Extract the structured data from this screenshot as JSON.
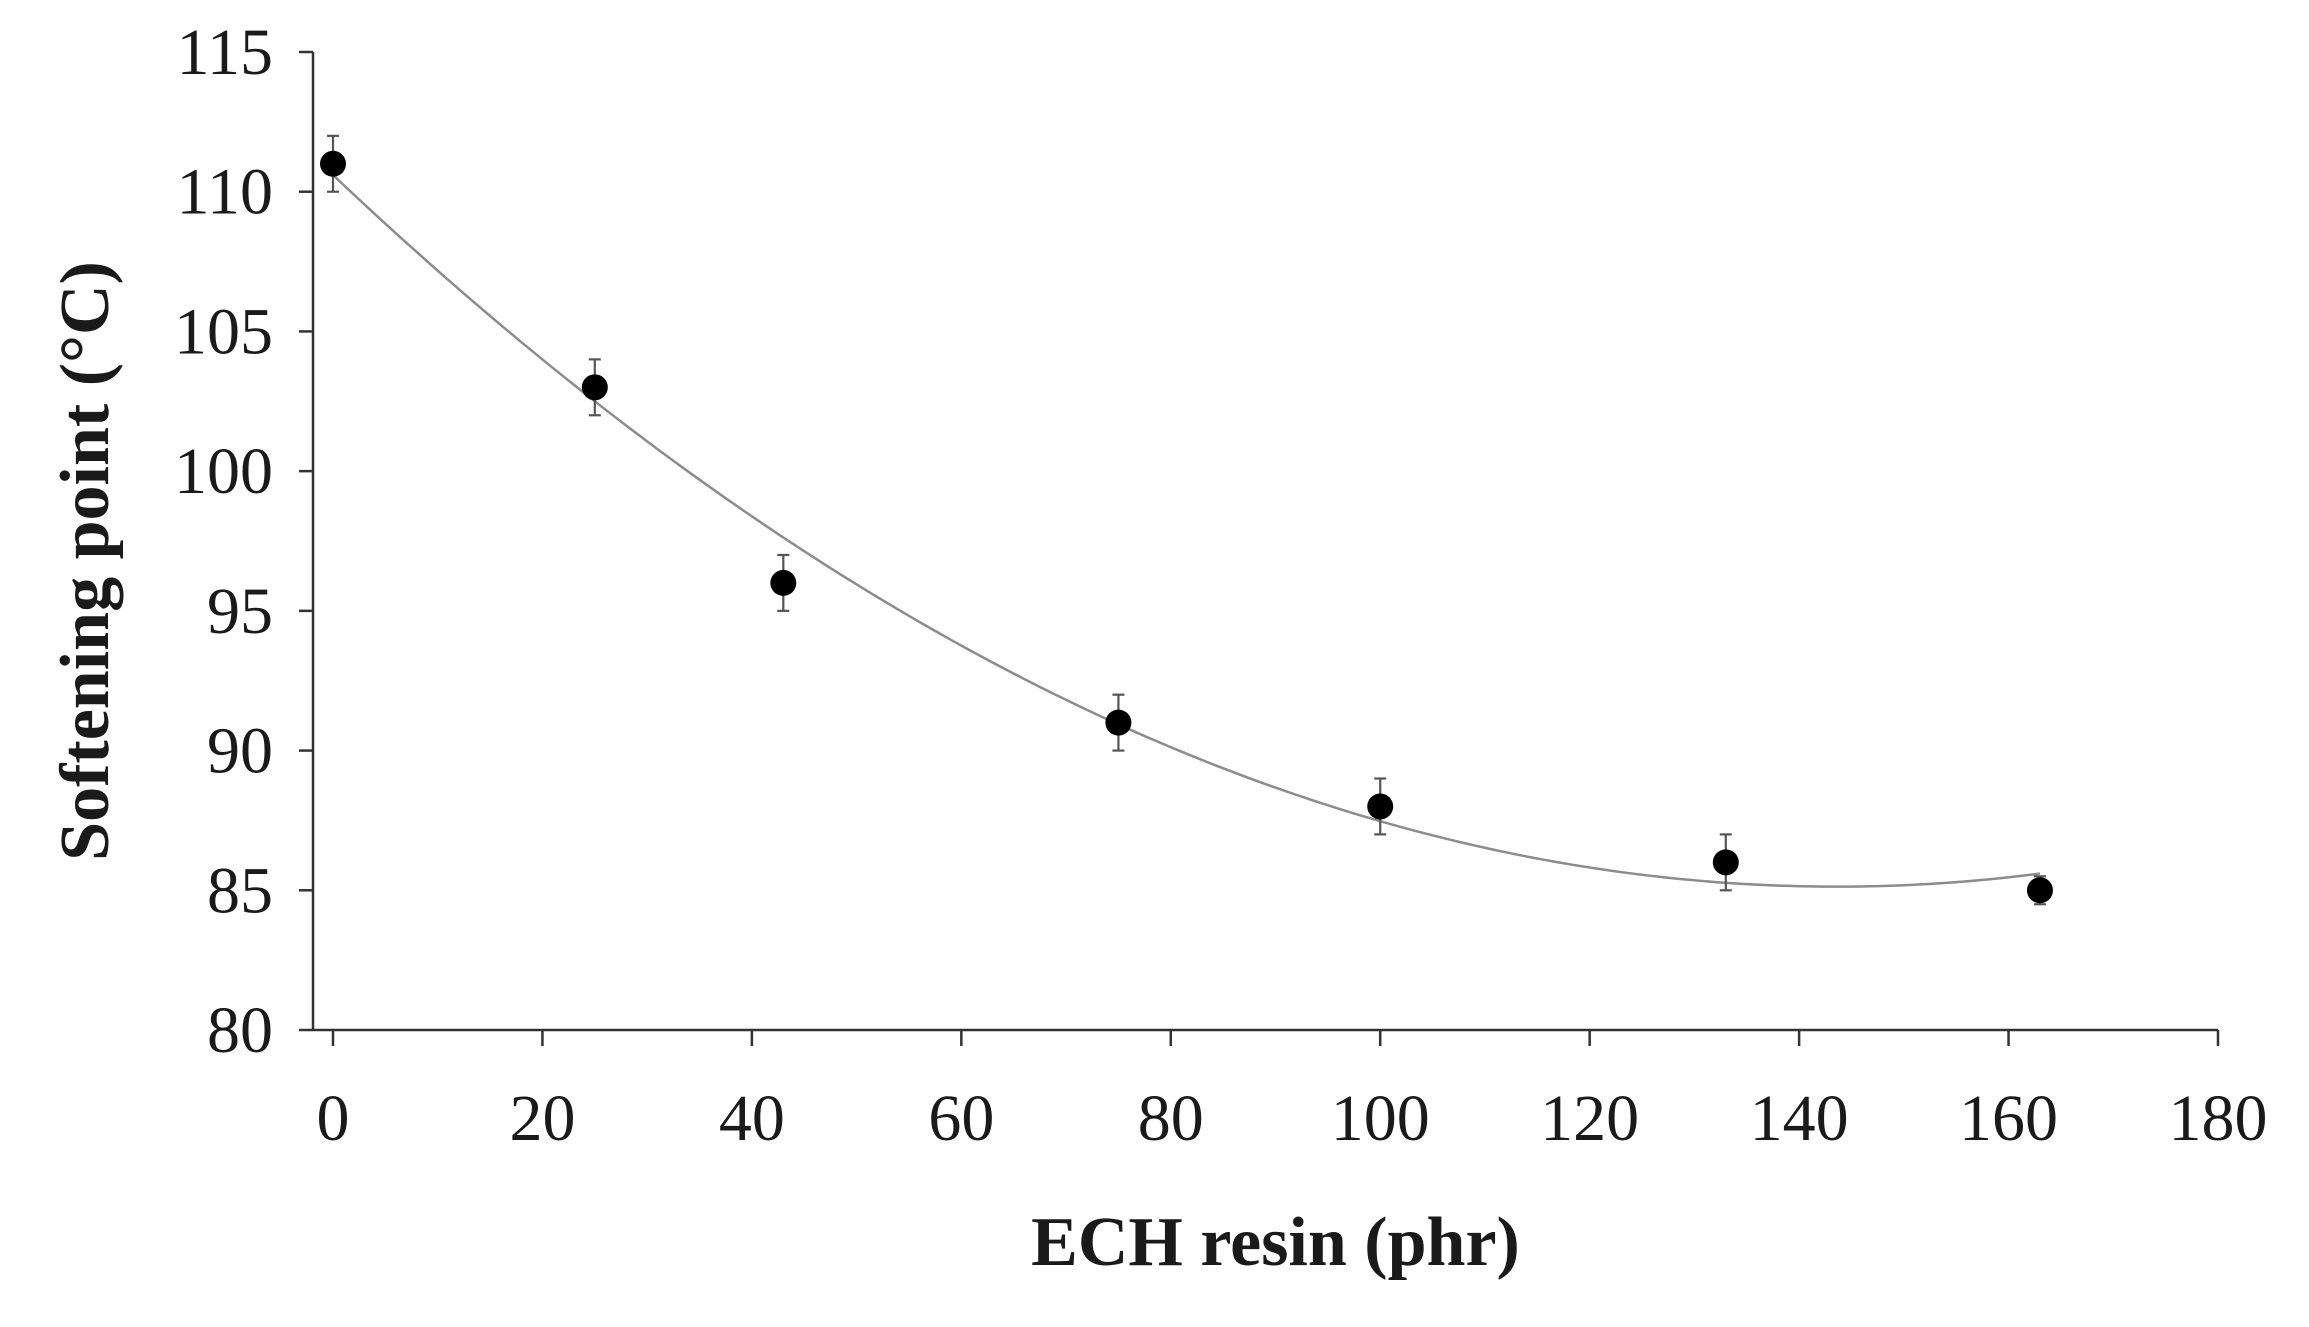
{
  "chart_data": {
    "type": "scatter",
    "xlabel": "ECH resin (phr)",
    "ylabel": "Softening point (°C)",
    "xlim": [
      0,
      180
    ],
    "ylim": [
      80,
      115
    ],
    "x_ticks": [
      0,
      20,
      40,
      60,
      80,
      100,
      120,
      140,
      160,
      180
    ],
    "y_ticks": [
      80,
      85,
      90,
      95,
      100,
      105,
      110,
      115
    ],
    "grid": false,
    "legend": "none",
    "series": [
      {
        "x": [
          0,
          25,
          43,
          75,
          100,
          133,
          163
        ],
        "y": [
          111,
          103,
          96,
          91,
          88,
          86,
          85
        ],
        "error": [
          1,
          1,
          1,
          1,
          1,
          1,
          0.5
        ],
        "marker_color": "#000000"
      }
    ],
    "trendline": {
      "type": "polynomial",
      "order": 2,
      "x_range": [
        0,
        163
      ],
      "color": "#8c8c8c"
    }
  }
}
